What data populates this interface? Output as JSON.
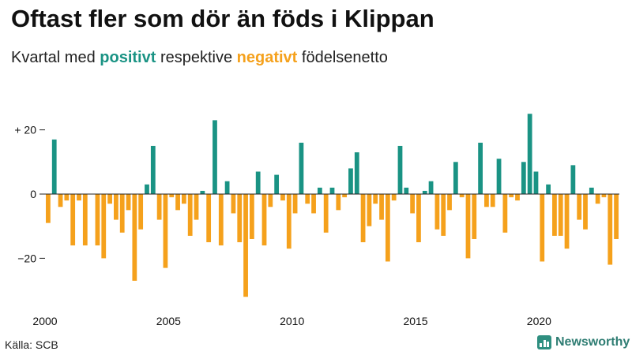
{
  "title": "Oftast fler som dör än föds i Klippan",
  "subtitle": {
    "prefix": "Kvartal med ",
    "positive": "positivt",
    "middle": " respektive ",
    "negative": "negativt",
    "suffix": " födelsenetto"
  },
  "source": "Källa: SCB",
  "brand": "Newsworthy",
  "colors": {
    "positive": "#1a9384",
    "negative": "#f5a11c",
    "axis": "#222222",
    "text": "#111111"
  },
  "chart_data": {
    "type": "bar",
    "title": "Oftast fler som dör än föds i Klippan",
    "subtitle": "Kvartal med positivt respektive negativt födelsenetto",
    "xlabel": "",
    "ylabel": "",
    "ylim": [
      -33,
      27
    ],
    "y_ticks": [
      {
        "value": 20,
        "label": "+ 20"
      },
      {
        "value": 0,
        "label": "0"
      },
      {
        "value": -20,
        "label": "−20"
      }
    ],
    "x_ticks": [
      {
        "value": 2000,
        "label": "2000"
      },
      {
        "value": 2005,
        "label": "2005"
      },
      {
        "value": 2010,
        "label": "2010"
      },
      {
        "value": 2015,
        "label": "2015"
      },
      {
        "value": 2020,
        "label": "2020"
      }
    ],
    "start_year": 2000,
    "periods_per_year": 4,
    "grid": false,
    "values": [
      -9,
      17,
      -4,
      -2,
      -16,
      -2,
      -16,
      0,
      -16,
      -20,
      -3,
      -8,
      -12,
      -5,
      -27,
      -11,
      3,
      15,
      -8,
      -23,
      -1,
      -5,
      -3,
      -13,
      -8,
      1,
      -15,
      23,
      -16,
      4,
      -6,
      -15,
      -32,
      -14,
      7,
      -16,
      -4,
      6,
      -2,
      -17,
      -6,
      16,
      -3,
      -6,
      2,
      -12,
      2,
      -5,
      -1,
      8,
      13,
      -15,
      -10,
      -3,
      -8,
      -21,
      -2,
      15,
      2,
      -6,
      -15,
      1,
      4,
      -11,
      -13,
      -5,
      10,
      -1,
      -20,
      -14,
      16,
      -4,
      -4,
      11,
      -12,
      -1,
      -2,
      10,
      25,
      7,
      -21,
      3,
      -13,
      -13,
      -17,
      9,
      -8,
      -11,
      2,
      -3,
      -1,
      -22,
      -14
    ]
  }
}
